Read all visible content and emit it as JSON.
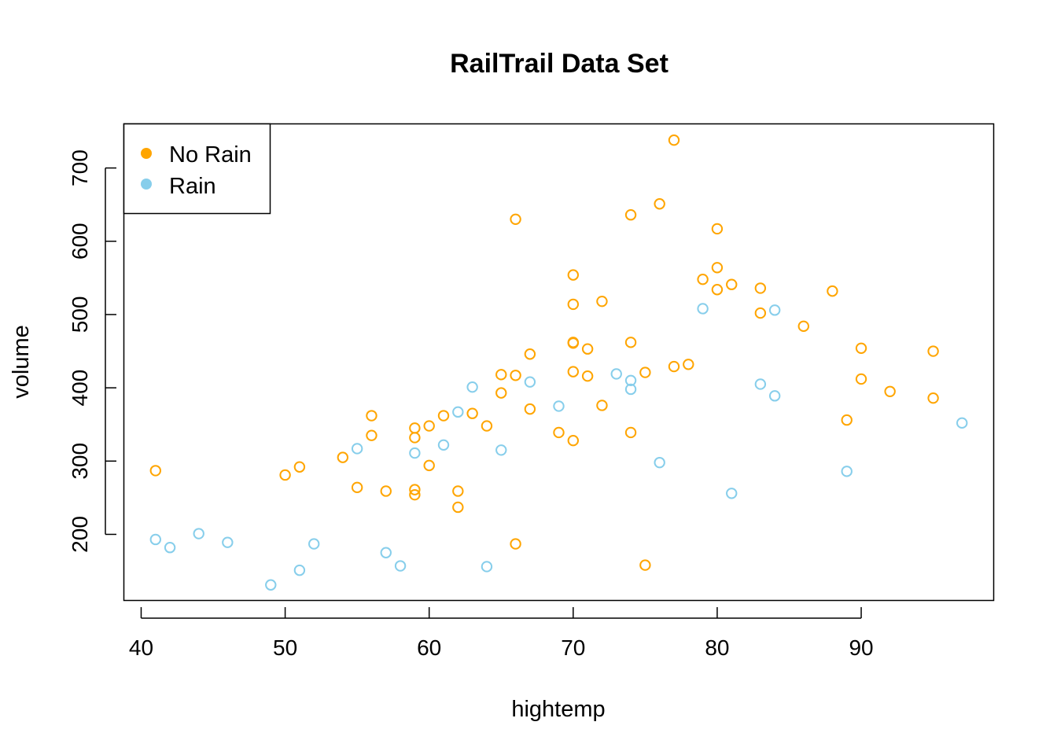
{
  "colors": {
    "no_rain": "#FFA500",
    "rain": "#87CEEB",
    "axis": "#000000"
  },
  "chart_data": {
    "type": "scatter",
    "title": "RailTrail Data Set",
    "xlabel": "hightemp",
    "ylabel": "volume",
    "xlim": [
      38.8,
      99.2
    ],
    "ylim": [
      109.8,
      760.2
    ],
    "xticks": [
      40,
      50,
      60,
      70,
      80,
      90
    ],
    "yticks": [
      200,
      300,
      400,
      500,
      600,
      700
    ],
    "grid": false,
    "legend_position": "top-left",
    "series": [
      {
        "name": "No Rain",
        "color": "#FFA500",
        "points": [
          [
            41,
            287
          ],
          [
            50,
            281
          ],
          [
            51,
            292
          ],
          [
            54,
            305
          ],
          [
            55,
            264
          ],
          [
            56,
            335
          ],
          [
            56,
            362
          ],
          [
            57,
            259
          ],
          [
            59,
            254
          ],
          [
            59,
            261
          ],
          [
            59,
            332
          ],
          [
            59,
            345
          ],
          [
            60,
            294
          ],
          [
            60,
            348
          ],
          [
            61,
            362
          ],
          [
            62,
            237
          ],
          [
            62,
            259
          ],
          [
            63,
            365
          ],
          [
            64,
            348
          ],
          [
            65,
            393
          ],
          [
            65,
            418
          ],
          [
            66,
            187
          ],
          [
            66,
            417
          ],
          [
            66,
            630
          ],
          [
            67,
            371
          ],
          [
            67,
            446
          ],
          [
            69,
            339
          ],
          [
            70,
            328
          ],
          [
            70,
            422
          ],
          [
            70,
            461
          ],
          [
            70,
            462
          ],
          [
            70,
            514
          ],
          [
            70,
            554
          ],
          [
            71,
            416
          ],
          [
            71,
            453
          ],
          [
            72,
            376
          ],
          [
            72,
            518
          ],
          [
            74,
            339
          ],
          [
            74,
            462
          ],
          [
            74,
            636
          ],
          [
            75,
            158
          ],
          [
            75,
            421
          ],
          [
            76,
            651
          ],
          [
            77,
            429
          ],
          [
            77,
            738
          ],
          [
            78,
            432
          ],
          [
            79,
            548
          ],
          [
            80,
            534
          ],
          [
            80,
            564
          ],
          [
            80,
            617
          ],
          [
            81,
            541
          ],
          [
            83,
            502
          ],
          [
            83,
            536
          ],
          [
            86,
            484
          ],
          [
            88,
            532
          ],
          [
            89,
            356
          ],
          [
            90,
            412
          ],
          [
            90,
            454
          ],
          [
            92,
            395
          ],
          [
            95,
            386
          ],
          [
            95,
            450
          ]
        ]
      },
      {
        "name": "Rain",
        "color": "#87CEEB",
        "points": [
          [
            41,
            193
          ],
          [
            42,
            182
          ],
          [
            44,
            201
          ],
          [
            46,
            189
          ],
          [
            49,
            131
          ],
          [
            51,
            151
          ],
          [
            52,
            187
          ],
          [
            55,
            317
          ],
          [
            57,
            175
          ],
          [
            58,
            157
          ],
          [
            59,
            311
          ],
          [
            61,
            322
          ],
          [
            62,
            367
          ],
          [
            63,
            401
          ],
          [
            64,
            156
          ],
          [
            65,
            315
          ],
          [
            67,
            408
          ],
          [
            69,
            375
          ],
          [
            73,
            419
          ],
          [
            74,
            398
          ],
          [
            74,
            410
          ],
          [
            76,
            298
          ],
          [
            79,
            508
          ],
          [
            81,
            256
          ],
          [
            83,
            405
          ],
          [
            84,
            389
          ],
          [
            84,
            506
          ],
          [
            89,
            286
          ],
          [
            97,
            352
          ]
        ]
      }
    ]
  }
}
